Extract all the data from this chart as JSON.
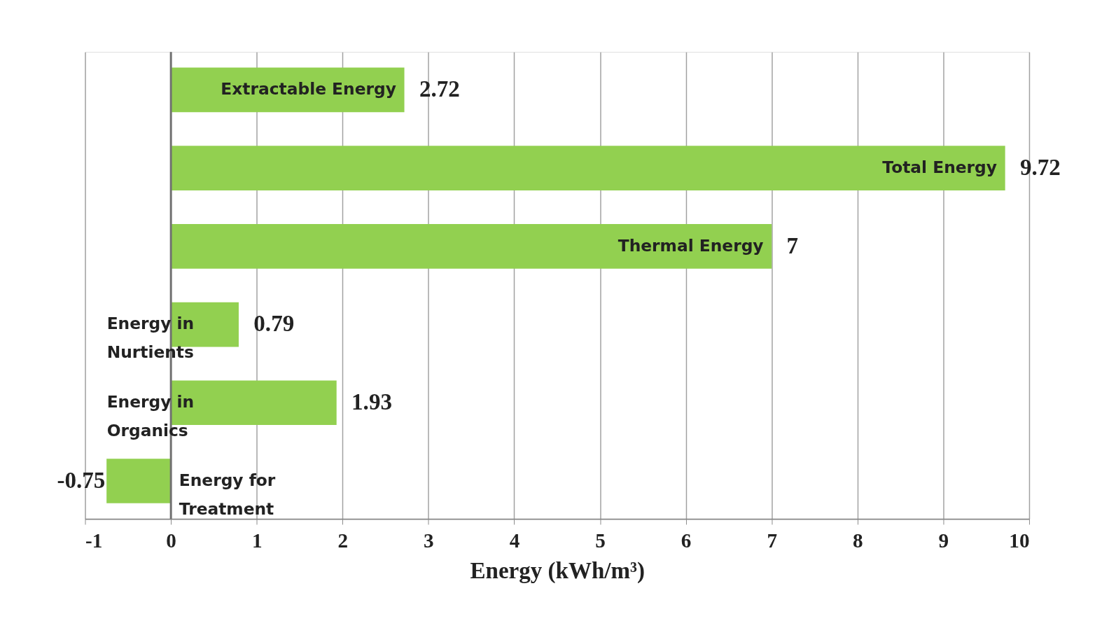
{
  "chart_data": {
    "type": "bar",
    "orientation": "horizontal",
    "xlabel": "Energy (kWh/m³)",
    "categories": [
      "Extractable Energy",
      "Total Energy",
      "Thermal Energy",
      "Energy in Nurtients",
      "Energy in Organics",
      "Energy for Treatment"
    ],
    "values": [
      2.72,
      9.72,
      7,
      0.79,
      1.93,
      -0.75
    ],
    "color": "#92d050",
    "xlim": [
      -1,
      10
    ],
    "xticks": [
      -1,
      0,
      1,
      2,
      3,
      4,
      5,
      6,
      7,
      8,
      9,
      10
    ],
    "grid": "x",
    "data_labels": true
  }
}
